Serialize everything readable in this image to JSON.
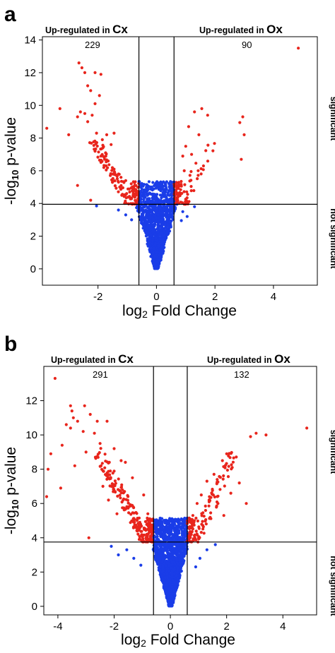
{
  "chart_data": [
    {
      "type": "scatter",
      "panel_label": "a",
      "xlabel": {
        "prefix": "log",
        "sub": "2",
        "suffix": " Fold Change"
      },
      "ylabel": {
        "prefix": "-log",
        "sub": "10",
        "suffix": " p-value"
      },
      "xlim": [
        -3.9,
        5.5
      ],
      "ylim": [
        -1.0,
        14.2
      ],
      "xticks": [
        -2,
        0,
        2,
        4
      ],
      "yticks": [
        0,
        2,
        4,
        6,
        8,
        10,
        12,
        14
      ],
      "fc_cutoffs": [
        -0.6,
        0.6
      ],
      "p_cutoff": 3.95,
      "grid": false,
      "header_left": {
        "text": "Up-regulated in ",
        "group": "Cx"
      },
      "header_right": {
        "text": "Up-regulated in ",
        "group": "Ox"
      },
      "count_left": "229",
      "count_right": "90",
      "side_top": "significant",
      "side_bottom": "not significant",
      "colors": {
        "significant": "#e8251c",
        "not_significant": "#1a3de8"
      },
      "series": [
        {
          "name": "significant",
          "color": "#e8251c",
          "points": [
            [
              4.85,
              13.5
            ],
            [
              -2.65,
              12.6
            ],
            [
              -2.55,
              12.3
            ],
            [
              -2.45,
              12.0
            ],
            [
              -2.1,
              12.0
            ],
            [
              -1.9,
              11.9
            ],
            [
              -2.35,
              11.2
            ],
            [
              -2.25,
              10.9
            ],
            [
              -1.95,
              10.6
            ],
            [
              -2.1,
              10.1
            ],
            [
              -3.3,
              9.8
            ],
            [
              -2.6,
              9.6
            ],
            [
              -2.45,
              9.5
            ],
            [
              -2.2,
              9.4
            ],
            [
              -2.35,
              9.0
            ],
            [
              -2.7,
              9.3
            ],
            [
              -3.75,
              8.6
            ],
            [
              -3.0,
              8.2
            ],
            [
              -2.05,
              8.3
            ],
            [
              -1.7,
              8.2
            ],
            [
              -1.45,
              8.3
            ],
            [
              -1.85,
              7.9
            ],
            [
              -1.55,
              7.6
            ],
            [
              -2.1,
              7.2
            ],
            [
              -1.9,
              6.9
            ],
            [
              -1.65,
              6.6
            ],
            [
              -1.8,
              6.2
            ],
            [
              -1.45,
              6.1
            ],
            [
              -1.3,
              5.8
            ],
            [
              -2.7,
              5.1
            ],
            [
              -1.05,
              5.4
            ],
            [
              -2.25,
              4.2
            ],
            [
              -0.85,
              4.3
            ],
            [
              -0.7,
              4.0
            ],
            [
              1.55,
              9.8
            ],
            [
              1.3,
              9.6
            ],
            [
              1.75,
              9.4
            ],
            [
              2.95,
              9.3
            ],
            [
              2.85,
              8.95
            ],
            [
              1.1,
              8.7
            ],
            [
              1.45,
              8.2
            ],
            [
              3.0,
              8.2
            ],
            [
              1.0,
              7.5
            ],
            [
              0.9,
              6.9
            ],
            [
              2.9,
              6.7
            ],
            [
              0.75,
              5.2
            ],
            [
              0.95,
              6.0
            ],
            [
              1.2,
              7.0
            ]
          ]
        },
        {
          "name": "not significant",
          "color": "#1a3de8",
          "points": [
            [
              -2.05,
              3.85
            ],
            [
              -1.3,
              3.6
            ],
            [
              -1.05,
              3.3
            ],
            [
              -0.85,
              3.0
            ],
            [
              1.3,
              3.8
            ],
            [
              0.9,
              3.5
            ],
            [
              1.05,
              3.2
            ],
            [
              0.85,
              2.95
            ]
          ]
        }
      ]
    },
    {
      "type": "scatter",
      "panel_label": "b",
      "xlabel": {
        "prefix": "log",
        "sub": "2",
        "suffix": " Fold Change"
      },
      "ylabel": {
        "prefix": "-log",
        "sub": "10",
        "suffix": " p-value"
      },
      "xlim": [
        -4.5,
        5.2
      ],
      "ylim": [
        -0.5,
        14.0
      ],
      "xticks": [
        -4,
        -2,
        0,
        2,
        4
      ],
      "yticks": [
        0,
        2,
        4,
        6,
        8,
        10,
        12
      ],
      "fc_cutoffs": [
        -0.6,
        0.6
      ],
      "p_cutoff": 3.75,
      "grid": false,
      "header_left": {
        "text": "Up-regulated in ",
        "group": "Cx"
      },
      "header_right": {
        "text": "Up-regulated in ",
        "group": "Ox"
      },
      "count_left": "291",
      "count_right": "132",
      "side_top": "significant",
      "side_bottom": "not significant",
      "colors": {
        "significant": "#e8251c",
        "not_significant": "#1a3de8"
      },
      "series": [
        {
          "name": "significant",
          "color": "#e8251c",
          "points": [
            [
              -4.1,
              13.3
            ],
            [
              4.85,
              10.4
            ],
            [
              -3.55,
              11.7
            ],
            [
              -3.05,
              11.7
            ],
            [
              -3.5,
              11.4
            ],
            [
              -2.85,
              11.2
            ],
            [
              -3.45,
              11.0
            ],
            [
              -3.3,
              10.8
            ],
            [
              -2.6,
              10.8
            ],
            [
              -2.25,
              10.8
            ],
            [
              -3.7,
              10.6
            ],
            [
              -3.55,
              10.4
            ],
            [
              -3.1,
              10.2
            ],
            [
              -2.7,
              10.1
            ],
            [
              3.05,
              10.1
            ],
            [
              3.4,
              10.0
            ],
            [
              2.85,
              9.9
            ],
            [
              -4.25,
              8.9
            ],
            [
              -3.85,
              9.4
            ],
            [
              -2.5,
              9.5
            ],
            [
              -2.0,
              9.2
            ],
            [
              -1.75,
              8.5
            ],
            [
              -4.35,
              8.0
            ],
            [
              -4.4,
              6.4
            ],
            [
              -3.9,
              6.9
            ],
            [
              -3.4,
              8.2
            ],
            [
              -1.6,
              8.4
            ],
            [
              -1.35,
              7.5
            ],
            [
              -0.95,
              6.5
            ],
            [
              -0.8,
              5.4
            ],
            [
              -0.75,
              4.5
            ],
            [
              2.0,
              8.9
            ],
            [
              1.85,
              8.5
            ],
            [
              2.2,
              8.1
            ],
            [
              1.55,
              7.7
            ],
            [
              1.3,
              7.3
            ],
            [
              2.45,
              7.2
            ],
            [
              2.15,
              6.6
            ],
            [
              1.1,
              6.5
            ],
            [
              0.95,
              6.0
            ],
            [
              0.8,
              5.3
            ],
            [
              0.7,
              4.6
            ],
            [
              0.65,
              4.0
            ],
            [
              2.7,
              6.0
            ],
            [
              1.9,
              5.3
            ],
            [
              -2.9,
              4.0
            ],
            [
              -2.4,
              7.0
            ],
            [
              -2.2,
              6.2
            ],
            [
              -1.9,
              5.4
            ],
            [
              -3.0,
              9.0
            ]
          ]
        },
        {
          "name": "not significant",
          "color": "#1a3de8",
          "points": [
            [
              -2.1,
              3.5
            ],
            [
              -1.55,
              3.3
            ],
            [
              -1.3,
              2.8
            ],
            [
              -1.05,
              2.4
            ],
            [
              1.6,
              3.6
            ],
            [
              1.3,
              3.3
            ],
            [
              1.05,
              2.8
            ],
            [
              0.9,
              2.3
            ],
            [
              -1.85,
              3.0
            ]
          ]
        }
      ]
    }
  ]
}
